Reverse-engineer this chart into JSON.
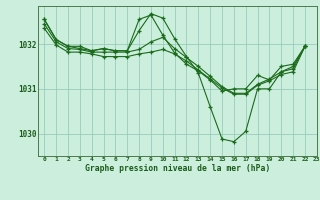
{
  "title": "Graphe pression niveau de la mer (hPa)",
  "bg_color": "#cceedd",
  "grid_color": "#99ccbb",
  "line_color": "#1a6b1a",
  "marker_color": "#1a6b1a",
  "xlim": [
    -0.5,
    23
  ],
  "ylim": [
    1029.5,
    1032.85
  ],
  "yticks": [
    1030,
    1031,
    1032
  ],
  "xticks": [
    0,
    1,
    2,
    3,
    4,
    5,
    6,
    7,
    8,
    9,
    10,
    11,
    12,
    13,
    14,
    15,
    16,
    17,
    18,
    19,
    20,
    21,
    22,
    23
  ],
  "series": [
    {
      "x": [
        0,
        1,
        2,
        3,
        4,
        5,
        6,
        7,
        8,
        9,
        10,
        11,
        12,
        13,
        14,
        15,
        16,
        17,
        18,
        19,
        20,
        21,
        22
      ],
      "y": [
        1032.55,
        1032.1,
        1031.95,
        1031.95,
        1031.85,
        1031.9,
        1031.85,
        1031.85,
        1032.55,
        1032.65,
        1032.2,
        1031.8,
        1031.55,
        1031.4,
        1031.2,
        1030.95,
        1031.0,
        1031.0,
        1031.3,
        1031.2,
        1031.5,
        1031.55,
        1031.95
      ]
    },
    {
      "x": [
        0,
        1,
        2,
        3,
        4,
        5,
        6,
        7,
        8,
        9,
        10,
        11,
        12,
        13,
        14,
        15,
        16,
        17,
        18,
        19,
        20,
        21,
        22
      ],
      "y": [
        1032.45,
        1032.05,
        1031.9,
        1031.88,
        1031.82,
        1031.82,
        1031.82,
        1031.82,
        1031.88,
        1032.05,
        1032.15,
        1031.9,
        1031.7,
        1031.5,
        1031.28,
        1031.05,
        1030.9,
        1030.9,
        1031.1,
        1031.22,
        1031.38,
        1031.45,
        1031.95
      ]
    },
    {
      "x": [
        0,
        1,
        2,
        3,
        4,
        5,
        6,
        7,
        8,
        9,
        10,
        11,
        12,
        13,
        14,
        15,
        16,
        17,
        18,
        19,
        20,
        21,
        22
      ],
      "y": [
        1032.35,
        1031.98,
        1031.82,
        1031.82,
        1031.78,
        1031.72,
        1031.72,
        1031.72,
        1031.78,
        1031.82,
        1031.88,
        1031.78,
        1031.62,
        1031.42,
        1031.22,
        1031.02,
        1030.88,
        1030.88,
        1031.08,
        1031.18,
        1031.32,
        1031.38,
        1031.95
      ]
    },
    {
      "x": [
        0,
        1,
        2,
        3,
        4,
        5,
        6,
        7,
        8,
        9,
        10,
        11,
        12,
        13,
        14,
        15,
        16,
        17,
        18,
        19,
        20,
        21,
        22
      ],
      "y": [
        1032.55,
        1032.1,
        1031.95,
        1031.9,
        1031.85,
        1031.9,
        1031.85,
        1031.85,
        1032.3,
        1032.68,
        1032.58,
        1032.12,
        1031.72,
        1031.35,
        1030.6,
        1029.88,
        1029.82,
        1030.05,
        1031.0,
        1031.0,
        1031.38,
        1031.5,
        1031.95
      ]
    }
  ]
}
